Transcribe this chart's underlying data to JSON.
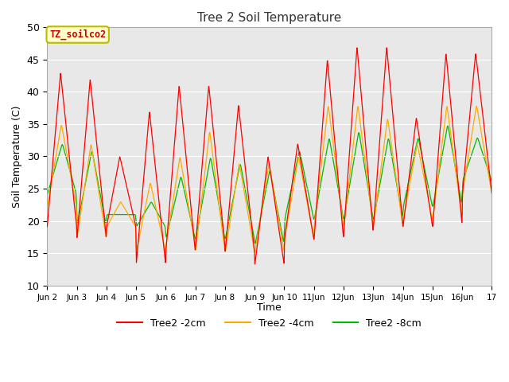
{
  "title": "Tree 2 Soil Temperature",
  "ylabel": "Soil Temperature (C)",
  "xlabel": "Time",
  "annotation": "TZ_soilco2",
  "ylim": [
    10,
    50
  ],
  "xlim": [
    0,
    15
  ],
  "xtick_labels": [
    "Jun 2",
    "Jun 3",
    "Jun 4",
    "Jun 5",
    "Jun 6",
    "Jun 7",
    "Jun 8",
    "Jun 9",
    "Jun 10",
    "11Jun",
    "12Jun",
    "13Jun",
    "14Jun",
    "15Jun",
    "16Jun",
    "17"
  ],
  "xtick_positions": [
    0,
    1,
    2,
    3,
    4,
    5,
    6,
    7,
    8,
    9,
    10,
    11,
    12,
    13,
    14,
    15
  ],
  "ytick_positions": [
    10,
    15,
    20,
    25,
    30,
    35,
    40,
    45,
    50
  ],
  "legend": [
    "Tree2 -2cm",
    "Tree2 -4cm",
    "Tree2 -8cm"
  ],
  "colors_2cm": "#ff0000",
  "colors_4cm": "#ffaa00",
  "colors_8cm": "#00bb00",
  "bg_color": "#e8e8e8",
  "annotation_bg": "#ffffcc",
  "annotation_border": "#bbbb00",
  "annotation_text_color": "#cc0000",
  "grid_color": "#ffffff",
  "title_color": "#333333",
  "day_peaks_2cm": [
    43,
    42,
    30,
    37,
    41,
    41,
    38,
    30,
    32,
    45,
    47,
    47,
    36,
    46,
    46
  ],
  "day_mins_2cm": [
    19,
    17,
    19,
    13,
    15,
    16,
    15,
    13,
    17,
    17,
    18,
    19,
    19,
    19,
    24
  ],
  "day_peaks_4cm": [
    35,
    32,
    23,
    26,
    30,
    34,
    29,
    29,
    30,
    38,
    38,
    36,
    32,
    38,
    38
  ],
  "day_mins_4cm": [
    22,
    17,
    19,
    15,
    16,
    15,
    15,
    15,
    17,
    19,
    19,
    19,
    20,
    20,
    24
  ],
  "day_peaks_8cm": [
    32,
    31,
    21,
    23,
    27,
    30,
    29,
    28,
    31,
    33,
    34,
    33,
    33,
    35,
    33
  ],
  "day_mins_8cm": [
    24,
    19,
    21,
    19,
    17,
    17,
    17,
    16,
    20,
    20,
    20,
    20,
    22,
    22,
    26
  ],
  "peak_phase": 0.45,
  "pts_per_day": 200
}
